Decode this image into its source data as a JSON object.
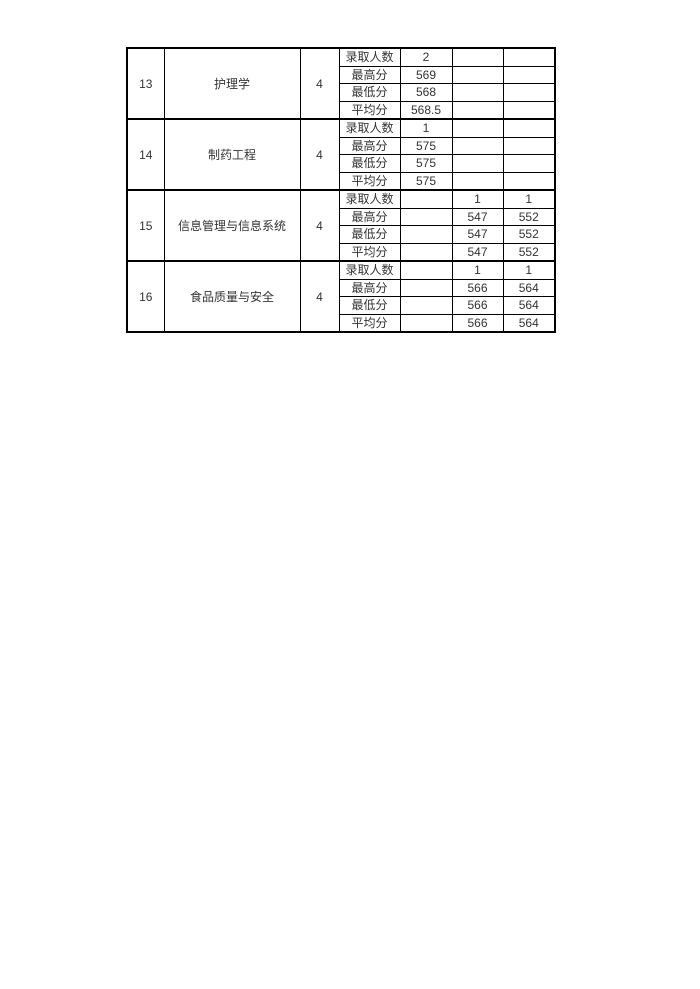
{
  "colors": {
    "page_background": "#ffffff",
    "table_border": "#000000",
    "text": "#333333"
  },
  "table": {
    "metric_labels": [
      "录取人数",
      "最高分",
      "最低分",
      "平均分"
    ],
    "groups": [
      {
        "no": "13",
        "major": "护理学",
        "years": "4",
        "rows": [
          [
            "2",
            "",
            ""
          ],
          [
            "569",
            "",
            ""
          ],
          [
            "568",
            "",
            ""
          ],
          [
            "568.5",
            "",
            ""
          ]
        ]
      },
      {
        "no": "14",
        "major": "制药工程",
        "years": "4",
        "rows": [
          [
            "1",
            "",
            ""
          ],
          [
            "575",
            "",
            ""
          ],
          [
            "575",
            "",
            ""
          ],
          [
            "575",
            "",
            ""
          ]
        ]
      },
      {
        "no": "15",
        "major": "信息管理与信息系统",
        "years": "4",
        "rows": [
          [
            "",
            "1",
            "1"
          ],
          [
            "",
            "547",
            "552"
          ],
          [
            "",
            "547",
            "552"
          ],
          [
            "",
            "547",
            "552"
          ]
        ]
      },
      {
        "no": "16",
        "major": "食品质量与安全",
        "years": "4",
        "rows": [
          [
            "",
            "1",
            "1"
          ],
          [
            "",
            "566",
            "564"
          ],
          [
            "",
            "566",
            "564"
          ],
          [
            "",
            "566",
            "564"
          ]
        ]
      }
    ]
  }
}
